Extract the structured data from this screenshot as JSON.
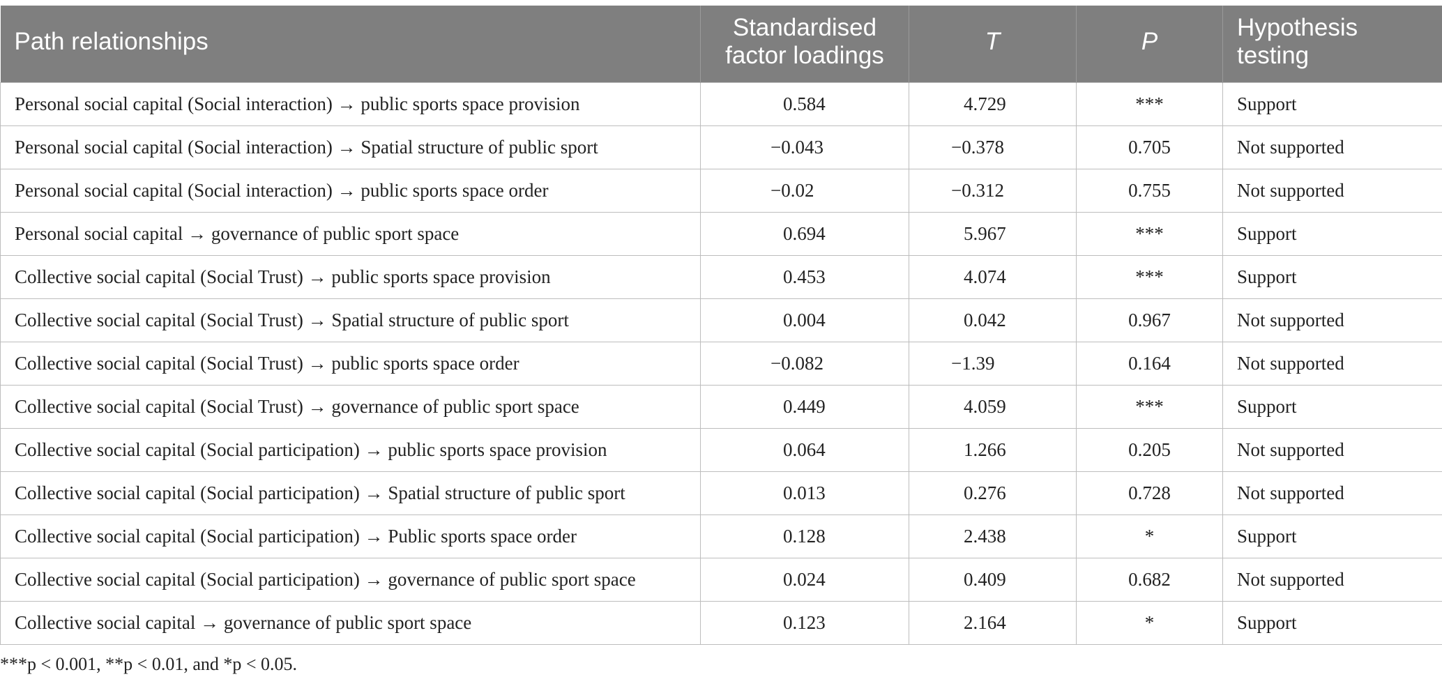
{
  "header": {
    "col1": "Path relationships",
    "col2": "Standardised factor loadings",
    "col3": "T",
    "col4": "P",
    "col5": "Hypothesis testing"
  },
  "rows": [
    {
      "path": "Personal social capital (Social interaction) → public sports space provision",
      "loading": "0.584",
      "t": "4.729",
      "p": "***",
      "result": "Support"
    },
    {
      "path": "Personal social capital (Social interaction) → Spatial structure of public sport",
      "loading": "−0.043",
      "t": "−0.378",
      "p": "0.705",
      "result": "Not supported"
    },
    {
      "path": "Personal social capital (Social interaction) → public sports space order",
      "loading": "−0.02",
      "t": "−0.312",
      "p": "0.755",
      "result": "Not supported"
    },
    {
      "path": "Personal social capital → governance of public sport space",
      "loading": "0.694",
      "t": "5.967",
      "p": "***",
      "result": "Support"
    },
    {
      "path": "Collective social capital (Social Trust) → public sports space provision",
      "loading": "0.453",
      "t": "4.074",
      "p": "***",
      "result": "Support"
    },
    {
      "path": "Collective social capital (Social Trust) → Spatial structure of public sport",
      "loading": "0.004",
      "t": "0.042",
      "p": "0.967",
      "result": "Not supported"
    },
    {
      "path": "Collective social capital (Social Trust) → public sports space order",
      "loading": "−0.082",
      "t": "−1.39",
      "p": "0.164",
      "result": "Not supported"
    },
    {
      "path": "Collective social capital (Social Trust) → governance of public sport space",
      "loading": "0.449",
      "t": "4.059",
      "p": "***",
      "result": "Support"
    },
    {
      "path": "Collective social capital (Social participation) → public sports space provision",
      "loading": "0.064",
      "t": "1.266",
      "p": "0.205",
      "result": "Not supported"
    },
    {
      "path": "Collective social capital (Social participation) → Spatial structure of public sport",
      "loading": "0.013",
      "t": "0.276",
      "p": "0.728",
      "result": "Not supported"
    },
    {
      "path": "Collective social capital (Social participation) → Public sports space order",
      "loading": "0.128",
      "t": "2.438",
      "p": "*",
      "result": "Support"
    },
    {
      "path": "Collective social capital (Social participation) → governance of public sport space",
      "loading": "0.024",
      "t": "0.409",
      "p": "0.682",
      "result": "Not supported"
    },
    {
      "path": "Collective social capital → governance of public sport space",
      "loading": "0.123",
      "t": "2.164",
      "p": "*",
      "result": "Support"
    }
  ],
  "footnote": "***p < 0.001, **p < 0.01, and *p < 0.05."
}
